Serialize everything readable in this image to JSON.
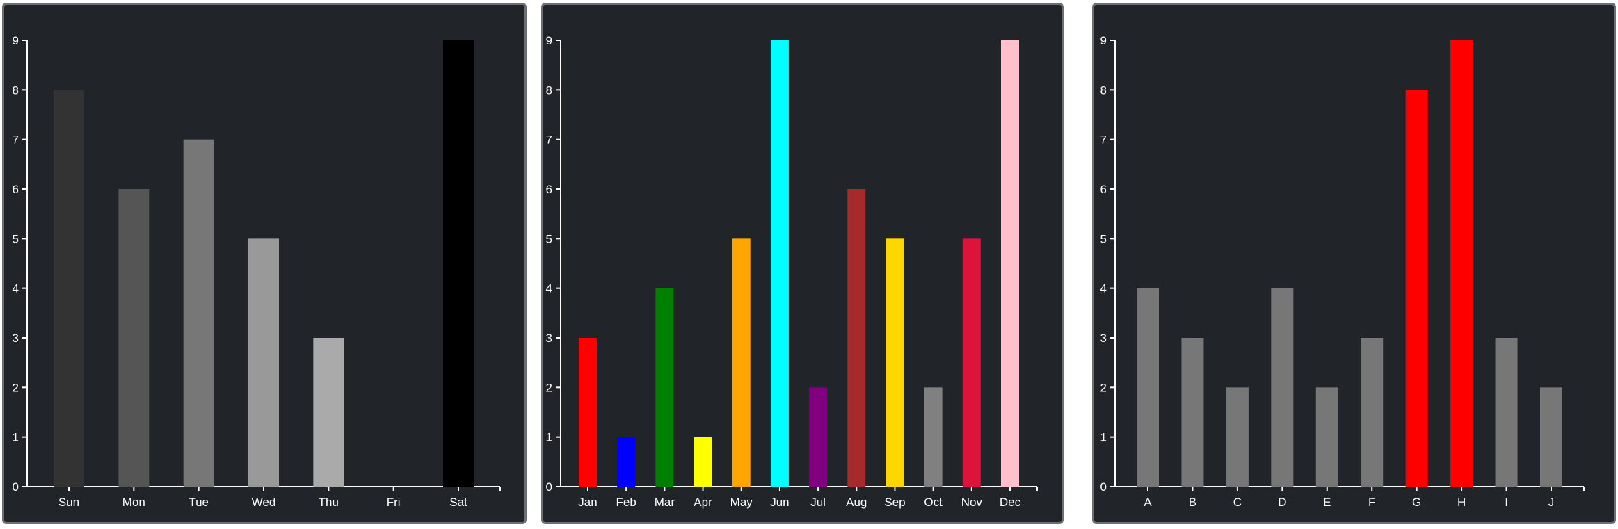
{
  "charts": [
    {
      "chart_data": {
        "type": "bar",
        "categories": [
          "Sun",
          "Mon",
          "Tue",
          "Wed",
          "Thu",
          "Fri",
          "Sat"
        ],
        "values": [
          8,
          6,
          7,
          5,
          3,
          0,
          9
        ],
        "colors": [
          "#333333",
          "#555555",
          "#777777",
          "#999999",
          "#aaaaaa",
          "#cccccc",
          "#000000"
        ],
        "ylim": [
          0,
          9
        ],
        "yticks": [
          "0",
          "1",
          "2",
          "3",
          "4",
          "5",
          "6",
          "7",
          "8",
          "9"
        ],
        "grid": false
      }
    },
    {
      "chart_data": {
        "type": "bar",
        "categories": [
          "Jan",
          "Feb",
          "Mar",
          "Apr",
          "May",
          "Jun",
          "Jul",
          "Aug",
          "Sep",
          "Oct",
          "Nov",
          "Dec"
        ],
        "values": [
          3,
          1,
          4,
          1,
          5,
          9,
          2,
          6,
          5,
          2,
          5,
          9
        ],
        "colors": [
          "#ff0000",
          "#0000ff",
          "#008000",
          "#ffff00",
          "#ffa500",
          "#00ffff",
          "#800080",
          "#a52a2a",
          "#ffd700",
          "#808080",
          "#dc143c",
          "#ffc0cb"
        ],
        "ylim": [
          0,
          9
        ],
        "yticks": [
          "0",
          "1",
          "2",
          "3",
          "4",
          "5",
          "6",
          "7",
          "8",
          "9"
        ],
        "grid": false
      }
    },
    {
      "chart_data": {
        "type": "bar",
        "categories": [
          "A",
          "B",
          "C",
          "D",
          "E",
          "F",
          "G",
          "H",
          "I",
          "J"
        ],
        "values": [
          4,
          3,
          2,
          4,
          2,
          3,
          8,
          9,
          3,
          2
        ],
        "colors": [
          "#777777",
          "#777777",
          "#777777",
          "#777777",
          "#777777",
          "#777777",
          "#ff0000",
          "#ff0000",
          "#777777",
          "#777777"
        ],
        "ylim": [
          0,
          9
        ],
        "yticks": [
          "0",
          "1",
          "2",
          "3",
          "4",
          "5",
          "6",
          "7",
          "8",
          "9"
        ],
        "grid": false
      }
    }
  ]
}
